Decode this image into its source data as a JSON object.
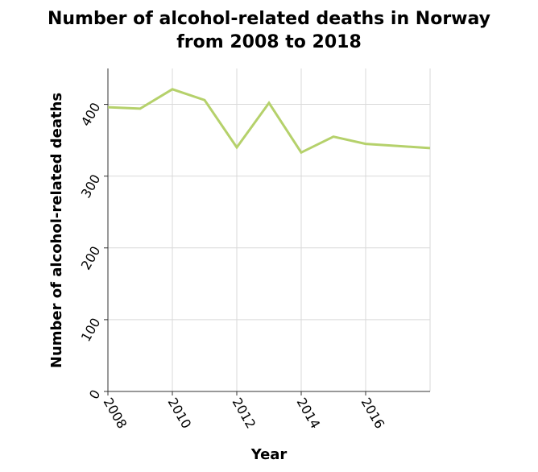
{
  "chart_data": {
    "type": "line",
    "title_line1": "Number of alcohol-related deaths in Norway",
    "title_line2": "from 2008 to 2018",
    "xlabel": "Year",
    "ylabel": "Number of alcohol-related deaths",
    "xlim": [
      2008,
      2018
    ],
    "ylim": [
      0,
      450
    ],
    "grid": true,
    "x_ticks": [
      2008,
      2010,
      2012,
      2014,
      2016
    ],
    "x_tick_labels": [
      "2008",
      "2010",
      "2012",
      "2014",
      "2016"
    ],
    "y_ticks": [
      0,
      100,
      200,
      300,
      400
    ],
    "y_tick_labels": [
      "0",
      "100",
      "200",
      "300",
      "400"
    ],
    "series": [
      {
        "x": [
          2008,
          2009,
          2010,
          2011,
          2012,
          2013,
          2014,
          2015,
          2016,
          2017,
          2018
        ],
        "values": [
          396,
          394,
          421,
          406,
          340,
          402,
          333,
          355,
          345,
          342,
          339
        ],
        "color": "#b5d16b"
      }
    ]
  }
}
